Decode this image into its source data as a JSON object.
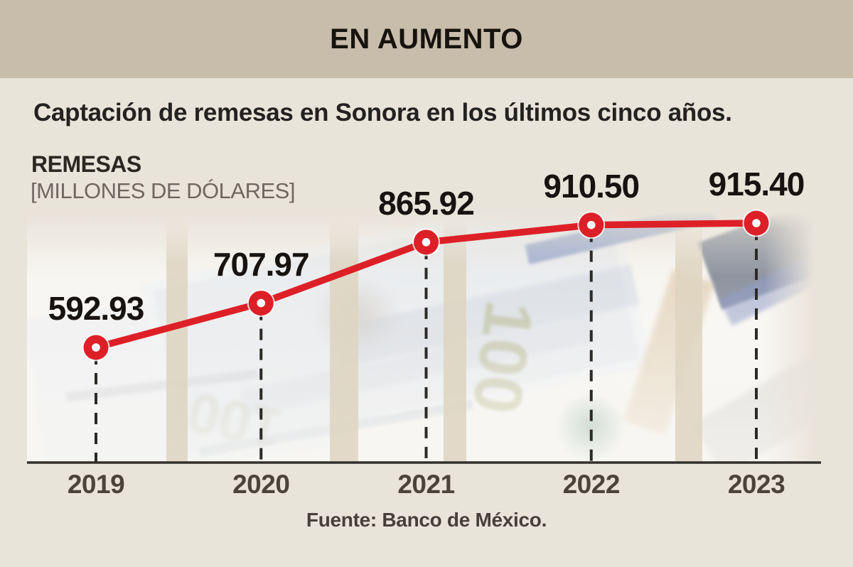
{
  "banner": {
    "title": "EN AUMENTO"
  },
  "header": {
    "subtitle": "Captación de remesas en Sonora en los últimos cinco años.",
    "series_label": "REMESAS",
    "series_units": "[MILLONES DE DÓLARES]"
  },
  "footer": {
    "source": "Fuente: Banco de México."
  },
  "colors": {
    "banner_bg": "#c8bcaa",
    "page_bg": "#e9e4da",
    "line": "#dd2027",
    "marker_center": "#ffffff",
    "dropline": "#2c2a26",
    "axis": "#33302c",
    "value_text": "#171310",
    "year_text": "#4b443b"
  },
  "chart_data": {
    "type": "line",
    "title": "EN AUMENTO",
    "subtitle": "Captación de remesas en Sonora en los últimos cinco años.",
    "ylabel": "REMESAS (MILLONES DE DÓLARES)",
    "xlabel": "",
    "categories": [
      "2019",
      "2020",
      "2021",
      "2022",
      "2023"
    ],
    "values": [
      592.93,
      707.97,
      865.92,
      910.5,
      915.4
    ],
    "value_labels": [
      "592.93",
      "707.97",
      "865.92",
      "910.50",
      "915.40"
    ],
    "series_name": "Captación de remesas en Sonora (millones de dólares)",
    "source": "Fuente: Banco de México.",
    "legend": "none",
    "grid": "dashed vertical droplines from each point to x-axis",
    "marker_style": "red ring with white center",
    "ylim": [
      550,
      950
    ]
  }
}
